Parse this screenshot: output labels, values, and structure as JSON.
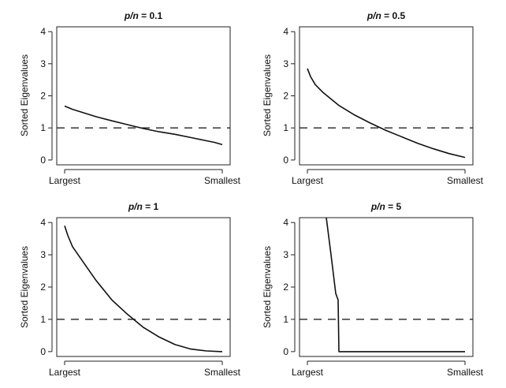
{
  "chart_data": [
    {
      "type": "line",
      "title": "p/n = 0.1",
      "title_italic_part": "p/n",
      "title_value_part": " = 0.1",
      "xlabel": "",
      "ylabel": "Sorted Eigenvalues",
      "x_tick_labels": [
        "Largest",
        "Smallest"
      ],
      "y_ticks": [
        "0",
        "1",
        "2",
        "3",
        "4"
      ],
      "ylim": [
        -0.15,
        4.15
      ],
      "reference_line": 1,
      "series": [
        {
          "x": [
            0,
            0.03,
            0.05,
            0.1,
            0.2,
            0.3,
            0.4,
            0.5,
            0.6,
            0.7,
            0.8,
            0.9,
            0.95,
            1.0
          ],
          "values": [
            1.68,
            1.62,
            1.58,
            1.5,
            1.35,
            1.22,
            1.1,
            0.98,
            0.88,
            0.8,
            0.7,
            0.6,
            0.55,
            0.48
          ]
        }
      ]
    },
    {
      "type": "line",
      "title": "p/n = 0.5",
      "title_italic_part": "p/n",
      "title_value_part": " = 0.5",
      "xlabel": "",
      "ylabel": "Sorted Eigenvalues",
      "x_tick_labels": [
        "Largest",
        "Smallest"
      ],
      "y_ticks": [
        "0",
        "1",
        "2",
        "3",
        "4"
      ],
      "ylim": [
        -0.15,
        4.15
      ],
      "reference_line": 1,
      "series": [
        {
          "x": [
            0,
            0.02,
            0.05,
            0.1,
            0.2,
            0.3,
            0.4,
            0.5,
            0.6,
            0.7,
            0.8,
            0.9,
            1.0
          ],
          "values": [
            2.85,
            2.6,
            2.35,
            2.1,
            1.7,
            1.4,
            1.15,
            0.92,
            0.72,
            0.52,
            0.35,
            0.2,
            0.08
          ]
        }
      ]
    },
    {
      "type": "line",
      "title": "p/n = 1",
      "title_italic_part": "p/n",
      "title_value_part": " = 1",
      "xlabel": "",
      "ylabel": "Sorted Eigenvalues",
      "x_tick_labels": [
        "Largest",
        "Smallest"
      ],
      "y_ticks": [
        "0",
        "1",
        "2",
        "3",
        "4"
      ],
      "ylim": [
        -0.15,
        4.15
      ],
      "reference_line": 1,
      "series": [
        {
          "x": [
            0,
            0.02,
            0.05,
            0.1,
            0.2,
            0.3,
            0.4,
            0.5,
            0.6,
            0.7,
            0.8,
            0.9,
            1.0
          ],
          "values": [
            3.9,
            3.6,
            3.25,
            2.9,
            2.2,
            1.6,
            1.15,
            0.75,
            0.45,
            0.22,
            0.08,
            0.02,
            0.0
          ]
        }
      ]
    },
    {
      "type": "line",
      "title": "p/n = 5",
      "title_italic_part": "p/n",
      "title_value_part": " = 5",
      "xlabel": "",
      "ylabel": "Sorted Eigenvalues",
      "x_tick_labels": [
        "Largest",
        "Smallest"
      ],
      "y_ticks": [
        "0",
        "1",
        "2",
        "3",
        "4"
      ],
      "ylim": [
        -0.15,
        4.15
      ],
      "reference_line": 1,
      "series": [
        {
          "x": [
            0.12,
            0.15,
            0.18,
            0.195,
            0.2,
            1.0
          ],
          "values": [
            4.15,
            3.0,
            1.8,
            1.6,
            0.0,
            0.0
          ]
        }
      ]
    }
  ]
}
